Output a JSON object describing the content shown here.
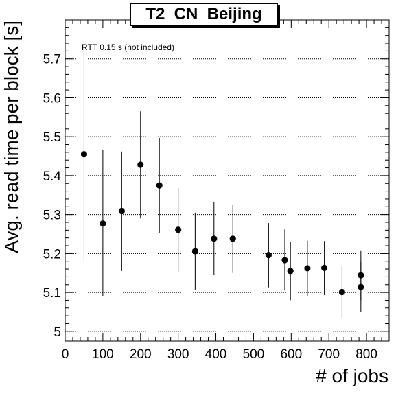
{
  "chart_data": {
    "type": "scatter",
    "title": "T2_CN_Beijing",
    "xlabel": "# of jobs",
    "ylabel": "Avg. read time per block [s]",
    "annotation": "RTT 0.15 s (not included)",
    "xlim": [
      0,
      860
    ],
    "ylim": [
      4.975,
      5.8
    ],
    "x_ticks": [
      0,
      100,
      200,
      300,
      400,
      500,
      600,
      700,
      800
    ],
    "y_ticks": [
      5,
      5.1,
      5.2,
      5.3,
      5.4,
      5.5,
      5.6,
      5.7
    ],
    "x_tick_labels": [
      "0",
      "100",
      "200",
      "300",
      "400",
      "500",
      "600",
      "700",
      "800"
    ],
    "y_tick_labels": [
      "5",
      "5.1",
      "5.2",
      "5.3",
      "5.4",
      "5.5",
      "5.6",
      "5.7"
    ],
    "grid": "horizontal dotted",
    "marker_color": "#000000",
    "series": [
      {
        "x": [
          50,
          100,
          150,
          200,
          250,
          300,
          345,
          395,
          445,
          540,
          583,
          598,
          643,
          688,
          735,
          785,
          785
        ],
        "y": [
          5.455,
          5.277,
          5.309,
          5.428,
          5.375,
          5.261,
          5.206,
          5.238,
          5.238,
          5.196,
          5.183,
          5.155,
          5.162,
          5.163,
          5.101,
          5.144,
          5.114
        ],
        "ylow": [
          5.18,
          5.09,
          5.155,
          5.29,
          5.253,
          5.152,
          5.107,
          5.145,
          5.15,
          5.113,
          5.105,
          5.08,
          5.09,
          5.093,
          5.035,
          5.08,
          5.05
        ],
        "yhigh": [
          5.73,
          5.465,
          5.462,
          5.565,
          5.497,
          5.368,
          5.305,
          5.333,
          5.326,
          5.278,
          5.262,
          5.23,
          5.233,
          5.232,
          5.167,
          5.208,
          5.178
        ]
      }
    ]
  }
}
